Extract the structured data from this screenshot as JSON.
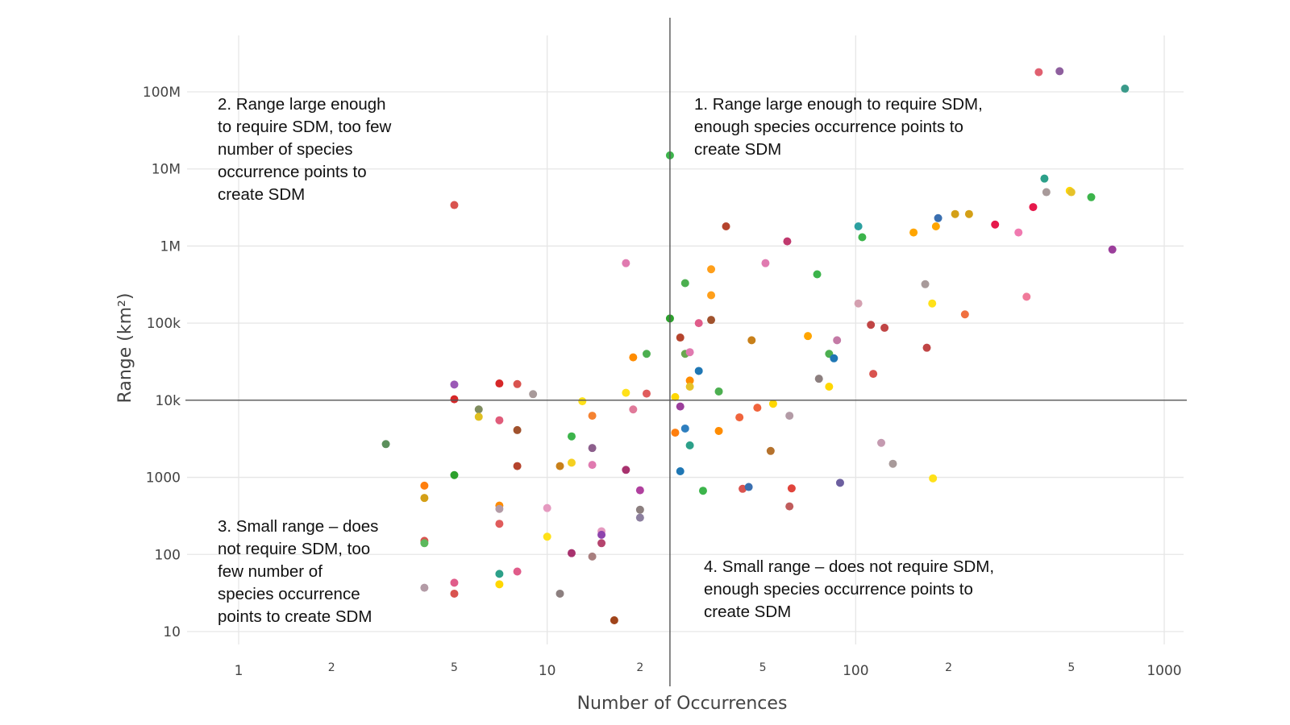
{
  "chart_data": {
    "type": "scatter",
    "title": "",
    "xlabel": "Number of Occurrences",
    "ylabel": "Range (km²)",
    "xscale": "log",
    "yscale": "log",
    "xlim": [
      0.8,
      1100
    ],
    "ylim": [
      6,
      320000000
    ],
    "grid": true,
    "x_ticks": [
      {
        "value": 1,
        "label": "1"
      },
      {
        "value": 10,
        "label": "10"
      },
      {
        "value": 100,
        "label": "100"
      },
      {
        "value": 1000,
        "label": "1000"
      }
    ],
    "x_minor_ticks": [
      {
        "value": 2,
        "label": "2"
      },
      {
        "value": 5,
        "label": "5"
      },
      {
        "value": 20,
        "label": "2"
      },
      {
        "value": 50,
        "label": "5"
      },
      {
        "value": 200,
        "label": "2"
      },
      {
        "value": 500,
        "label": "5"
      }
    ],
    "y_ticks": [
      {
        "value": 10,
        "label": "10"
      },
      {
        "value": 100,
        "label": "100"
      },
      {
        "value": 1000,
        "label": "1000"
      },
      {
        "value": 10000,
        "label": "10k"
      },
      {
        "value": 100000,
        "label": "100k"
      },
      {
        "value": 1000000,
        "label": "1M"
      },
      {
        "value": 10000000,
        "label": "10M"
      },
      {
        "value": 100000000,
        "label": "100M"
      }
    ],
    "threshold_x": 25,
    "threshold_y": 10000,
    "quadrants": [
      {
        "id": "q1",
        "text": "1. Range large enough to require SDM,\nenough species occurrence points to\ncreate SDM"
      },
      {
        "id": "q2",
        "text": "2. Range large enough\nto require SDM, too few\nnumber of species\noccurrence points to\ncreate SDM"
      },
      {
        "id": "q3",
        "text": "3. Small range – does\nnot require SDM, too\nfew number of\nspecies occurrence\npoints to create SDM"
      },
      {
        "id": "q4",
        "text": "4. Small range – does not require SDM,\nenough species occurrence points to\ncreate SDM"
      }
    ],
    "points": [
      {
        "x": 3,
        "y": 2700,
        "color": "#5b8f5b"
      },
      {
        "x": 4,
        "y": 780,
        "color": "#ff7f0e"
      },
      {
        "x": 4,
        "y": 540,
        "color": "#d4a017"
      },
      {
        "x": 4,
        "y": 150,
        "color": "#d9534f"
      },
      {
        "x": 4,
        "y": 140,
        "color": "#5cb85c"
      },
      {
        "x": 4,
        "y": 37,
        "color": "#b39ba6"
      },
      {
        "x": 5,
        "y": 3400000,
        "color": "#d9534f"
      },
      {
        "x": 5,
        "y": 16000,
        "color": "#9b59b6"
      },
      {
        "x": 5,
        "y": 10300,
        "color": "#d62728"
      },
      {
        "x": 5,
        "y": 1070,
        "color": "#2ca02c"
      },
      {
        "x": 5,
        "y": 43,
        "color": "#e05c8a"
      },
      {
        "x": 5,
        "y": 31,
        "color": "#d9534f"
      },
      {
        "x": 6,
        "y": 7600,
        "color": "#7f8c5f"
      },
      {
        "x": 6,
        "y": 6100,
        "color": "#e0c020"
      },
      {
        "x": 7,
        "y": 16500,
        "color": "#d62728"
      },
      {
        "x": 7,
        "y": 5500,
        "color": "#e05c7a"
      },
      {
        "x": 7,
        "y": 430,
        "color": "#ff8c00"
      },
      {
        "x": 7,
        "y": 390,
        "color": "#b39ba6"
      },
      {
        "x": 7,
        "y": 250,
        "color": "#e05c5c"
      },
      {
        "x": 7,
        "y": 56,
        "color": "#2ca089"
      },
      {
        "x": 7,
        "y": 41,
        "color": "#ffd700"
      },
      {
        "x": 8,
        "y": 16200,
        "color": "#d9534f"
      },
      {
        "x": 8,
        "y": 4100,
        "color": "#a0522d"
      },
      {
        "x": 8,
        "y": 1400,
        "color": "#b5442d"
      },
      {
        "x": 8,
        "y": 60,
        "color": "#e05c8a"
      },
      {
        "x": 9,
        "y": 12000,
        "color": "#a89a9a"
      },
      {
        "x": 10,
        "y": 400,
        "color": "#e59ac0"
      },
      {
        "x": 10,
        "y": 170,
        "color": "#ffe119"
      },
      {
        "x": 11,
        "y": 1400,
        "color": "#c8801a"
      },
      {
        "x": 11,
        "y": 31,
        "color": "#8c7f7f"
      },
      {
        "x": 12,
        "y": 3400,
        "color": "#3cb44b"
      },
      {
        "x": 12,
        "y": 1550,
        "color": "#f5d020"
      },
      {
        "x": 12,
        "y": 104,
        "color": "#a8326e"
      },
      {
        "x": 13,
        "y": 9700,
        "color": "#ffe119"
      },
      {
        "x": 14,
        "y": 6300,
        "color": "#f58231"
      },
      {
        "x": 14,
        "y": 2400,
        "color": "#8c5f8c"
      },
      {
        "x": 14,
        "y": 1450,
        "color": "#e07ab0"
      },
      {
        "x": 14,
        "y": 94,
        "color": "#a87f7f"
      },
      {
        "x": 15,
        "y": 200,
        "color": "#e59ac0"
      },
      {
        "x": 15,
        "y": 180,
        "color": "#8e44ad"
      },
      {
        "x": 15,
        "y": 140,
        "color": "#b5446e"
      },
      {
        "x": 16.5,
        "y": 14,
        "color": "#a0441a"
      },
      {
        "x": 18,
        "y": 600000,
        "color": "#e07ab0"
      },
      {
        "x": 18,
        "y": 12500,
        "color": "#ffe119"
      },
      {
        "x": 18,
        "y": 1250,
        "color": "#a8326e"
      },
      {
        "x": 19,
        "y": 36000,
        "color": "#ff8c00"
      },
      {
        "x": 19,
        "y": 7600,
        "color": "#e07a9a"
      },
      {
        "x": 20,
        "y": 680,
        "color": "#b0409e"
      },
      {
        "x": 20,
        "y": 380,
        "color": "#8c7f7f"
      },
      {
        "x": 20,
        "y": 300,
        "color": "#8c7f9f"
      },
      {
        "x": 21,
        "y": 40000,
        "color": "#4caf50"
      },
      {
        "x": 21,
        "y": 12200,
        "color": "#e05c5c"
      },
      {
        "x": 25,
        "y": 15000000,
        "color": "#3cb44b"
      },
      {
        "x": 25,
        "y": 115000,
        "color": "#2ca02c"
      },
      {
        "x": 26,
        "y": 11000,
        "color": "#ffd700"
      },
      {
        "x": 26,
        "y": 3800,
        "color": "#ff7f0e"
      },
      {
        "x": 27,
        "y": 65000,
        "color": "#b5442d"
      },
      {
        "x": 27,
        "y": 8300,
        "color": "#9b3e9b"
      },
      {
        "x": 27,
        "y": 1200,
        "color": "#1f77b4"
      },
      {
        "x": 28,
        "y": 330000,
        "color": "#4caf50"
      },
      {
        "x": 28,
        "y": 40000,
        "color": "#6aa84f"
      },
      {
        "x": 28,
        "y": 4300,
        "color": "#2f7fbf"
      },
      {
        "x": 29,
        "y": 42000,
        "color": "#e07ab0"
      },
      {
        "x": 29,
        "y": 18000,
        "color": "#ff8c00"
      },
      {
        "x": 29,
        "y": 15000,
        "color": "#e6c229"
      },
      {
        "x": 29,
        "y": 2600,
        "color": "#2ca089"
      },
      {
        "x": 31,
        "y": 100000,
        "color": "#e05c8a"
      },
      {
        "x": 31,
        "y": 24000,
        "color": "#1f77b4"
      },
      {
        "x": 32,
        "y": 670,
        "color": "#3cb44b"
      },
      {
        "x": 34,
        "y": 500000,
        "color": "#ff9f1a"
      },
      {
        "x": 34,
        "y": 230000,
        "color": "#ff9f1a"
      },
      {
        "x": 34,
        "y": 110000,
        "color": "#a0522d"
      },
      {
        "x": 36,
        "y": 13000,
        "color": "#4caf50"
      },
      {
        "x": 36,
        "y": 4000,
        "color": "#ff8c00"
      },
      {
        "x": 38,
        "y": 1800000,
        "color": "#b5442d"
      },
      {
        "x": 42,
        "y": 6000,
        "color": "#f0643c"
      },
      {
        "x": 43,
        "y": 710,
        "color": "#d9534f"
      },
      {
        "x": 45,
        "y": 750,
        "color": "#3a6fb0"
      },
      {
        "x": 46,
        "y": 60000,
        "color": "#c8801a"
      },
      {
        "x": 48,
        "y": 8000,
        "color": "#f0643c"
      },
      {
        "x": 51,
        "y": 600000,
        "color": "#e07ab0"
      },
      {
        "x": 53,
        "y": 2200,
        "color": "#b5722d"
      },
      {
        "x": 54,
        "y": 9000,
        "color": "#ffd700"
      },
      {
        "x": 60,
        "y": 1150000,
        "color": "#c0396e"
      },
      {
        "x": 61,
        "y": 420,
        "color": "#c05c5c"
      },
      {
        "x": 61,
        "y": 6300,
        "color": "#b39ba6"
      },
      {
        "x": 62,
        "y": 720,
        "color": "#e0443c"
      },
      {
        "x": 70,
        "y": 68000,
        "color": "#ffa500"
      },
      {
        "x": 75,
        "y": 430000,
        "color": "#3cb44b"
      },
      {
        "x": 76,
        "y": 19000,
        "color": "#8c7f7f"
      },
      {
        "x": 82,
        "y": 40000,
        "color": "#4caf50"
      },
      {
        "x": 82,
        "y": 15000,
        "color": "#ffd700"
      },
      {
        "x": 85,
        "y": 35000,
        "color": "#1f77b4"
      },
      {
        "x": 87,
        "y": 60000,
        "color": "#c47aa6"
      },
      {
        "x": 89,
        "y": 850,
        "color": "#6c5f9f"
      },
      {
        "x": 102,
        "y": 1800000,
        "color": "#2ca0a0"
      },
      {
        "x": 102,
        "y": 180000,
        "color": "#d4a0b0"
      },
      {
        "x": 105,
        "y": 1300000,
        "color": "#3cb44b"
      },
      {
        "x": 112,
        "y": 95000,
        "color": "#c04545"
      },
      {
        "x": 114,
        "y": 22000,
        "color": "#d9534f"
      },
      {
        "x": 121,
        "y": 2800,
        "color": "#c49ab0"
      },
      {
        "x": 124,
        "y": 87000,
        "color": "#c04545"
      },
      {
        "x": 132,
        "y": 1500,
        "color": "#a89a9a"
      },
      {
        "x": 154,
        "y": 1500000,
        "color": "#ffa500"
      },
      {
        "x": 168,
        "y": 320000,
        "color": "#a89a9a"
      },
      {
        "x": 170,
        "y": 48000,
        "color": "#c04545"
      },
      {
        "x": 177,
        "y": 180000,
        "color": "#ffe119"
      },
      {
        "x": 178,
        "y": 970,
        "color": "#ffe119"
      },
      {
        "x": 182,
        "y": 1800000,
        "color": "#ffa500"
      },
      {
        "x": 185,
        "y": 2300000,
        "color": "#3a6fb0"
      },
      {
        "x": 210,
        "y": 2600000,
        "color": "#d4a017"
      },
      {
        "x": 226,
        "y": 130000,
        "color": "#f07040"
      },
      {
        "x": 233,
        "y": 2600000,
        "color": "#d4a017"
      },
      {
        "x": 283,
        "y": 1900000,
        "color": "#e6194b"
      },
      {
        "x": 337,
        "y": 1500000,
        "color": "#f07ab0"
      },
      {
        "x": 358,
        "y": 220000,
        "color": "#f07a9a"
      },
      {
        "x": 376,
        "y": 3200000,
        "color": "#e6194b"
      },
      {
        "x": 392,
        "y": 180000000,
        "color": "#e06070"
      },
      {
        "x": 409,
        "y": 7500000,
        "color": "#2ca089"
      },
      {
        "x": 415,
        "y": 5000000,
        "color": "#a89a9a"
      },
      {
        "x": 458,
        "y": 185000000,
        "color": "#8e5f9e"
      },
      {
        "x": 494,
        "y": 5200000,
        "color": "#ffd700"
      },
      {
        "x": 500,
        "y": 5000000,
        "color": "#e6c229"
      },
      {
        "x": 580,
        "y": 4300000,
        "color": "#3cb44b"
      },
      {
        "x": 679,
        "y": 900000,
        "color": "#9b3e9b"
      },
      {
        "x": 746,
        "y": 110000000,
        "color": "#3a9a8a"
      }
    ]
  }
}
